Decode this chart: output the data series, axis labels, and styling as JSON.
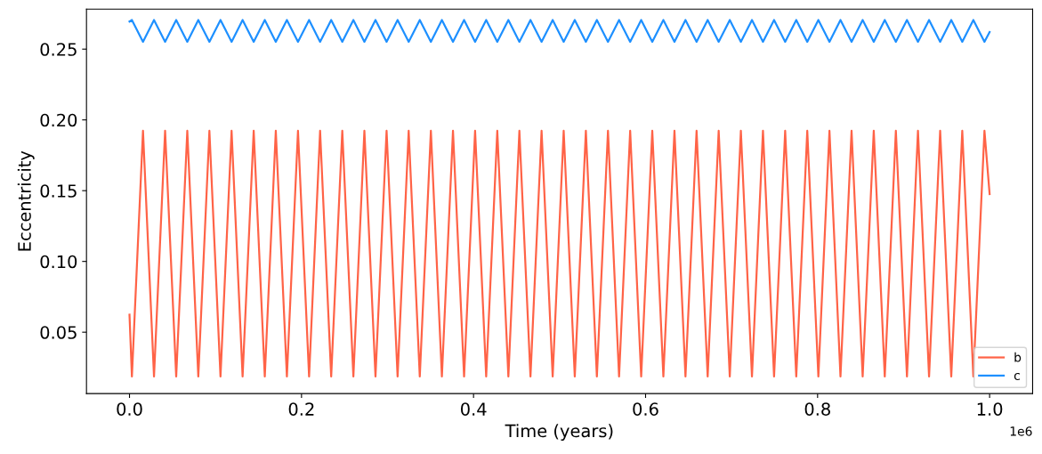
{
  "chart_data": {
    "type": "line",
    "xlabel": "Time (years)",
    "ylabel": "Eccentricity",
    "annotations": [
      "1e6"
    ],
    "x": [
      0,
      0.0028,
      0.0157,
      0.0285,
      0.0414,
      0.0543,
      0.0672,
      0.08,
      0.0929,
      0.1058,
      0.1187,
      0.1315,
      0.1444,
      0.1573,
      0.1701,
      0.183,
      0.1959,
      0.2088,
      0.2216,
      0.2345,
      0.2474,
      0.2603,
      0.2731,
      0.286,
      0.2989,
      0.3117,
      0.3246,
      0.3375,
      0.3504,
      0.3632,
      0.3761,
      0.389,
      0.4018,
      0.4147,
      0.4276,
      0.4405,
      0.4533,
      0.4662,
      0.4791,
      0.492,
      0.5048,
      0.5177,
      0.5306,
      0.5434,
      0.5563,
      0.5692,
      0.5821,
      0.5949,
      0.6078,
      0.6207,
      0.6336,
      0.6464,
      0.6593,
      0.6722,
      0.685,
      0.6979,
      0.7108,
      0.7237,
      0.7365,
      0.7494,
      0.7623,
      0.7752,
      0.788,
      0.8009,
      0.8138,
      0.8266,
      0.8395,
      0.8524,
      0.8653,
      0.8781,
      0.891,
      0.9039,
      0.9167,
      0.9296,
      0.9425,
      0.9554,
      0.9682,
      0.9811,
      0.994,
      1.0
    ],
    "series": [
      {
        "name": "b",
        "color": "#ff6347",
        "values": [
          0.0624,
          0.0187,
          0.1923,
          0.0187,
          0.1923,
          0.0187,
          0.1923,
          0.0187,
          0.1923,
          0.0187,
          0.1923,
          0.0187,
          0.1923,
          0.0187,
          0.1923,
          0.0187,
          0.1923,
          0.0187,
          0.1923,
          0.0187,
          0.1923,
          0.0187,
          0.1923,
          0.0187,
          0.1923,
          0.0187,
          0.1923,
          0.0187,
          0.1923,
          0.0187,
          0.1923,
          0.0187,
          0.1923,
          0.0187,
          0.1923,
          0.0187,
          0.1923,
          0.0187,
          0.1923,
          0.0187,
          0.1923,
          0.0187,
          0.1923,
          0.0187,
          0.1923,
          0.0187,
          0.1923,
          0.0187,
          0.1923,
          0.0187,
          0.1923,
          0.0187,
          0.1923,
          0.0187,
          0.1923,
          0.0187,
          0.1923,
          0.0187,
          0.1923,
          0.0187,
          0.1923,
          0.0187,
          0.1923,
          0.0187,
          0.1923,
          0.0187,
          0.1923,
          0.0187,
          0.1923,
          0.0187,
          0.1923,
          0.0187,
          0.1923,
          0.0187,
          0.1923,
          0.0187,
          0.1923,
          0.0187,
          0.1923,
          0.1476
        ]
      },
      {
        "name": "c",
        "color": "#1e90ff",
        "values": [
          0.2695,
          0.2706,
          0.2552,
          0.2706,
          0.2552,
          0.2706,
          0.2552,
          0.2706,
          0.2552,
          0.2706,
          0.2552,
          0.2706,
          0.2552,
          0.2706,
          0.2552,
          0.2706,
          0.2552,
          0.2706,
          0.2552,
          0.2706,
          0.2552,
          0.2706,
          0.2552,
          0.2706,
          0.2552,
          0.2706,
          0.2552,
          0.2706,
          0.2552,
          0.2706,
          0.2552,
          0.2706,
          0.2552,
          0.2706,
          0.2552,
          0.2706,
          0.2552,
          0.2706,
          0.2552,
          0.2706,
          0.2552,
          0.2706,
          0.2552,
          0.2706,
          0.2552,
          0.2706,
          0.2552,
          0.2706,
          0.2552,
          0.2706,
          0.2552,
          0.2706,
          0.2552,
          0.2706,
          0.2552,
          0.2706,
          0.2552,
          0.2706,
          0.2552,
          0.2706,
          0.2552,
          0.2706,
          0.2552,
          0.2706,
          0.2552,
          0.2706,
          0.2552,
          0.2706,
          0.2552,
          0.2706,
          0.2552,
          0.2706,
          0.2552,
          0.2706,
          0.2552,
          0.2706,
          0.2552,
          0.2706,
          0.2552,
          0.2621
        ]
      }
    ],
    "xlim": [
      -0.05,
      1.05
    ],
    "xticks": [
      {
        "value": 0,
        "label": "0.0"
      },
      {
        "value": 0.2,
        "label": "0.2"
      },
      {
        "value": 0.4,
        "label": "0.4"
      },
      {
        "value": 0.6,
        "label": "0.6"
      },
      {
        "value": 0.8,
        "label": "0.8"
      },
      {
        "value": 1.0,
        "label": "1.0"
      }
    ],
    "ylim": [
      0.0066,
      0.2783
    ],
    "yticks": [
      {
        "value": 0.05,
        "label": "0.05"
      },
      {
        "value": 0.1,
        "label": "0.10"
      },
      {
        "value": 0.15,
        "label": "0.15"
      },
      {
        "value": 0.2,
        "label": "0.20"
      },
      {
        "value": 0.25,
        "label": "0.25"
      }
    ],
    "grid": false,
    "legend": "lower right",
    "marker": "none",
    "line_style": "solid"
  }
}
